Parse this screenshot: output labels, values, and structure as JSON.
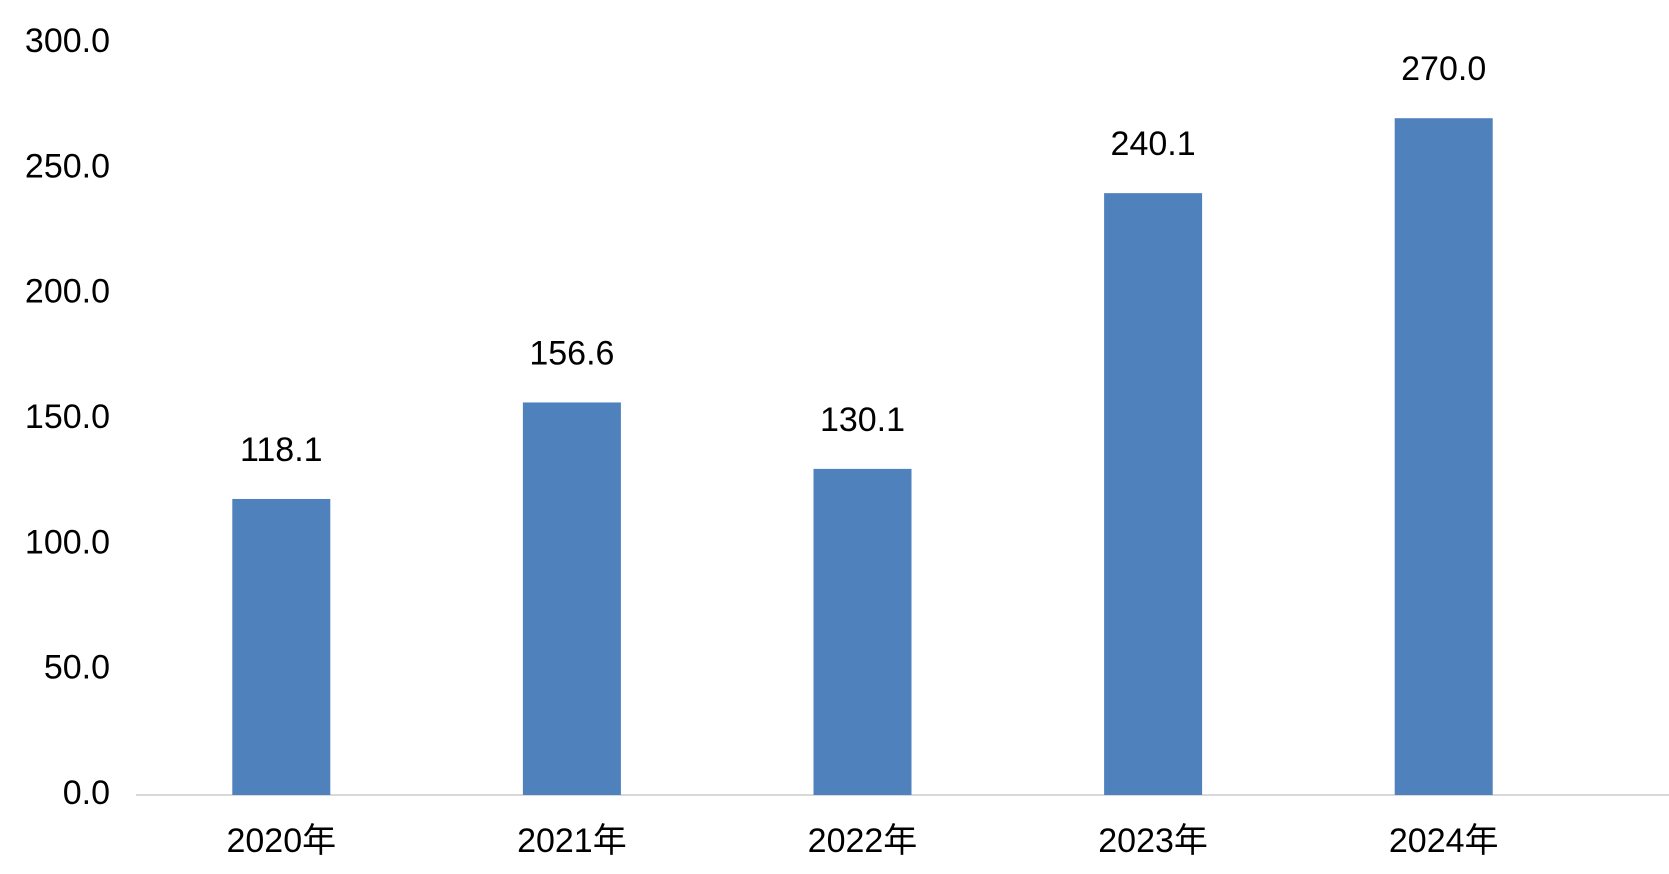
{
  "chart_data": {
    "type": "bar",
    "categories": [
      "2020年",
      "2021年",
      "2022年",
      "2023年",
      "2024年"
    ],
    "values": [
      118.1,
      156.6,
      130.1,
      240.1,
      270.0
    ],
    "value_labels": [
      "118.1",
      "156.6",
      "130.1",
      "240.1",
      "270.0"
    ],
    "color": "#4f81bd",
    "ylim": [
      0,
      300
    ],
    "yticks": [
      {
        "value": 0,
        "label": "0.0"
      },
      {
        "value": 50,
        "label": "50.0"
      },
      {
        "value": 100,
        "label": "100.0"
      },
      {
        "value": 150,
        "label": "150.0"
      },
      {
        "value": 200,
        "label": "200.0"
      },
      {
        "value": 250,
        "label": "250.0"
      },
      {
        "value": 300,
        "label": "300.0"
      }
    ],
    "grid": false
  }
}
